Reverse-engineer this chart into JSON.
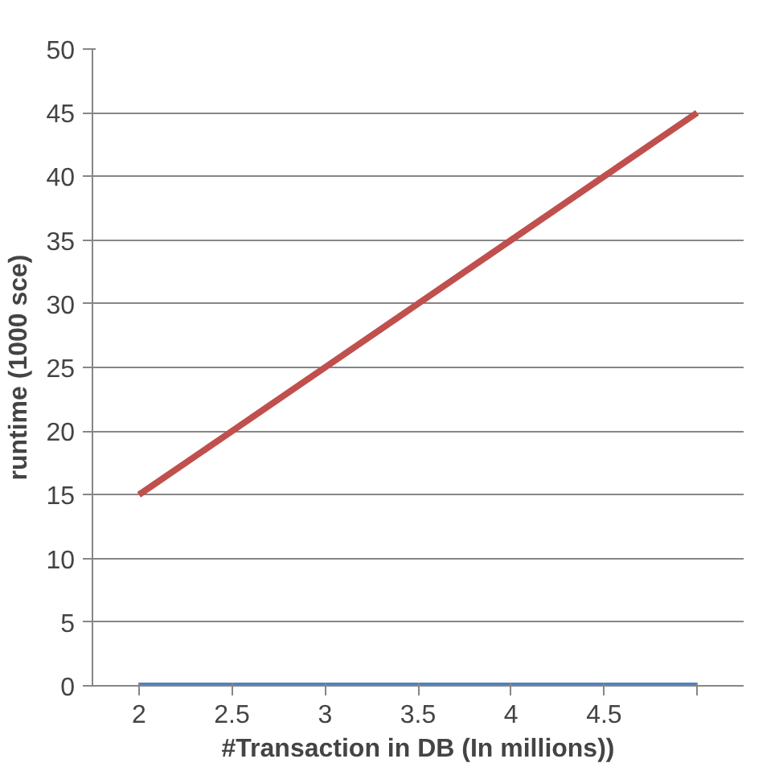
{
  "chart_data": {
    "type": "line",
    "xlabel": "#Transaction in DB (In millions))",
    "ylabel": "runtime (1000 sce)",
    "categories": [
      "2",
      "2.5",
      "3",
      "3.5",
      "4",
      "4.5",
      null
    ],
    "series": [
      {
        "color": "#4f81bd",
        "values": [
          0,
          0,
          0,
          0,
          0,
          0,
          0
        ]
      },
      {
        "color": "#c0504d",
        "values": [
          15,
          20,
          25,
          30,
          35,
          40,
          45
        ]
      }
    ],
    "ylim": [
      0,
      50
    ],
    "yticks": [
      0,
      5,
      10,
      15,
      20,
      25,
      30,
      35,
      40,
      45,
      50
    ],
    "grid": "y",
    "marker": "none",
    "line_style": "solid"
  }
}
